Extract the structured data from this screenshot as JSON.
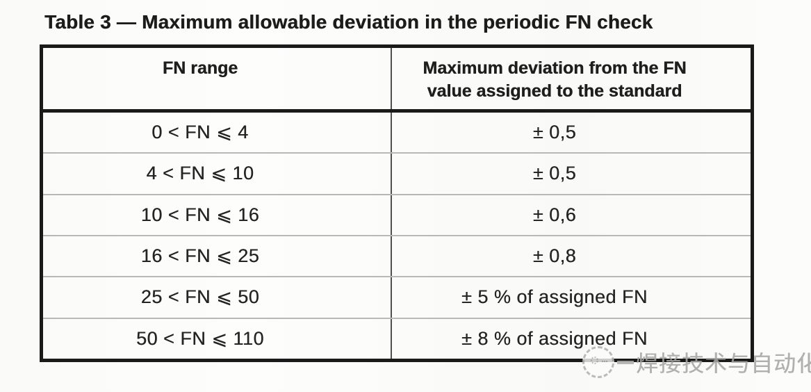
{
  "title": "Table 3 — Maximum allowable deviation in the periodic FN check",
  "table": {
    "header": {
      "col1": "FN range",
      "col2_line1": "Maximum deviation from the FN",
      "col2_line2": "value assigned to the standard"
    },
    "rows": [
      {
        "range": "0 < FN ⩽ 4",
        "deviation": "± 0,5"
      },
      {
        "range": "4 < FN ⩽ 10",
        "deviation": "± 0,5"
      },
      {
        "range": "10 < FN ⩽ 16",
        "deviation": "± 0,6"
      },
      {
        "range": "16 < FN ⩽ 25",
        "deviation": "± 0,8"
      },
      {
        "range": "25 < FN ⩽ 50",
        "deviation": "± 5 % of assigned FN"
      },
      {
        "range": "50 < FN ⩽ 110",
        "deviation": "± 8 % of assigned FN"
      }
    ]
  },
  "watermark": {
    "text": "焊接技术与自动化",
    "logo": "dashed-circle-logo"
  },
  "colors": {
    "paper": "#fbfbf9",
    "border_dark": "#1a1a1a",
    "divider_column": "#4f4f4f",
    "divider_row": "#b8b8b8",
    "text": "#242424",
    "watermark": "#a6a6a6"
  }
}
